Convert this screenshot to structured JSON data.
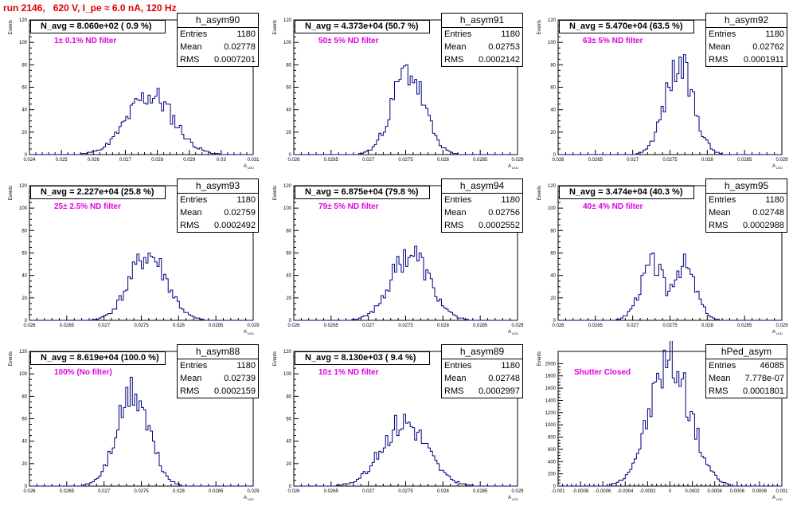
{
  "run_title": "run 2146,   620 V, I_pe ≈ 6.0 nA, 120 Hz",
  "stat_labels": {
    "entries": "Entries",
    "mean": "Mean",
    "rms": "RMS"
  },
  "y_axis_label": "Events",
  "x_axis_label": "A",
  "x_axis_label_sub": "LED",
  "chart_data": [
    {
      "type": "bar",
      "name": "h_asym90",
      "n_avg": "N_avg = 8.060e+02 ( 0.9 %)",
      "filter": "1± 0.1% ND filter",
      "entries": "1180",
      "mean": "0.02778",
      "rms": "0.0007201",
      "xlim": [
        0.024,
        0.031
      ],
      "ylim": [
        0,
        120
      ],
      "xticks": [
        0.024,
        0.025,
        0.026,
        0.027,
        0.028,
        0.029,
        0.03,
        0.031
      ],
      "xtick_labels": [
        "0.024",
        "0.025",
        "0.026",
        "0.027",
        "0.028",
        "0.029",
        "0.03",
        "0.031"
      ],
      "yticks": [
        0,
        20,
        40,
        60,
        80,
        100,
        120
      ],
      "dist": {
        "mu": 0.02778,
        "sigma": 0.00072,
        "peak": 53,
        "seed": 11
      }
    },
    {
      "type": "bar",
      "name": "h_asym91",
      "n_avg": "N_avg = 4.373e+04 (50.7 %)",
      "filter": "50± 5% ND filter",
      "entries": "1180",
      "mean": "0.02753",
      "rms": "0.0002142",
      "xlim": [
        0.026,
        0.029
      ],
      "ylim": [
        0,
        120
      ],
      "xticks": [
        0.026,
        0.0265,
        0.027,
        0.0275,
        0.028,
        0.0285,
        0.029
      ],
      "xtick_labels": [
        "0.026",
        "0.0265",
        "0.027",
        "0.0275",
        "0.028",
        "0.0285",
        "0.029"
      ],
      "yticks": [
        0,
        20,
        40,
        60,
        80,
        100,
        120
      ],
      "dist": {
        "mu": 0.02753,
        "sigma": 0.000214,
        "peak": 74,
        "seed": 23
      }
    },
    {
      "type": "bar",
      "name": "h_asym92",
      "n_avg": "N_avg = 5.470e+04 (63.5 %)",
      "filter": "63± 5% ND filter",
      "entries": "1180",
      "mean": "0.02762",
      "rms": "0.0001911",
      "xlim": [
        0.026,
        0.029
      ],
      "ylim": [
        0,
        120
      ],
      "xticks": [
        0.026,
        0.0265,
        0.027,
        0.0275,
        0.028,
        0.0285,
        0.029
      ],
      "xtick_labels": [
        "0.026",
        "0.0265",
        "0.027",
        "0.0275",
        "0.028",
        "0.0285",
        "0.029"
      ],
      "yticks": [
        0,
        20,
        40,
        60,
        80,
        100,
        120
      ],
      "dist": {
        "mu": 0.02762,
        "sigma": 0.000191,
        "peak": 79,
        "seed": 37
      }
    },
    {
      "type": "bar",
      "name": "h_asym93",
      "n_avg": "N_avg = 2.227e+04 (25.8 %)",
      "filter": "25± 2.5% ND filter",
      "entries": "1180",
      "mean": "0.02759",
      "rms": "0.0002492",
      "xlim": [
        0.026,
        0.029
      ],
      "ylim": [
        0,
        120
      ],
      "xticks": [
        0.026,
        0.0265,
        0.027,
        0.0275,
        0.028,
        0.0285,
        0.029
      ],
      "xtick_labels": [
        "0.026",
        "0.0265",
        "0.027",
        "0.0275",
        "0.028",
        "0.0285",
        "0.029"
      ],
      "yticks": [
        0,
        20,
        40,
        60,
        80,
        100,
        120
      ],
      "dist": {
        "mu": 0.02759,
        "sigma": 0.000249,
        "peak": 58,
        "seed": 41
      }
    },
    {
      "type": "bar",
      "name": "h_asym94",
      "n_avg": "N_avg = 6.875e+04 (79.8 %)",
      "filter": "79± 5% ND filter",
      "entries": "1180",
      "mean": "0.02756",
      "rms": "0.0002552",
      "xlim": [
        0.026,
        0.029
      ],
      "ylim": [
        0,
        120
      ],
      "xticks": [
        0.026,
        0.0265,
        0.027,
        0.0275,
        0.028,
        0.0285,
        0.029
      ],
      "xtick_labels": [
        "0.026",
        "0.0265",
        "0.027",
        "0.0275",
        "0.028",
        "0.0285",
        "0.029"
      ],
      "yticks": [
        0,
        20,
        40,
        60,
        80,
        100,
        120
      ],
      "dist": {
        "mu": 0.02756,
        "sigma": 0.000255,
        "peak": 60,
        "seed": 53
      }
    },
    {
      "type": "bar",
      "name": "h_asym95",
      "n_avg": "N_avg = 3.474e+04 (40.3 %)",
      "filter": "40± 4% ND filter",
      "entries": "1180",
      "mean": "0.02748",
      "rms": "0.0002988",
      "xlim": [
        0.026,
        0.029
      ],
      "ylim": [
        0,
        120
      ],
      "xticks": [
        0.026,
        0.0265,
        0.027,
        0.0275,
        0.028,
        0.0285,
        0.029
      ],
      "xtick_labels": [
        "0.026",
        "0.0265",
        "0.027",
        "0.0275",
        "0.028",
        "0.0285",
        "0.029"
      ],
      "yticks": [
        0,
        20,
        40,
        60,
        80,
        100,
        120
      ],
      "dist": {
        "mu": 0.02748,
        "sigma": 0.000299,
        "peak": 50,
        "seed": 67,
        "bimodal": true
      }
    },
    {
      "type": "bar",
      "name": "h_asym88",
      "n_avg": "N_avg = 8.619e+04 (100.0 %)",
      "filter": "100% (No filter)",
      "entries": "1180",
      "mean": "0.02739",
      "rms": "0.0002159",
      "xlim": [
        0.026,
        0.029
      ],
      "ylim": [
        0,
        120
      ],
      "xticks": [
        0.026,
        0.0265,
        0.027,
        0.0275,
        0.028,
        0.0285,
        0.029
      ],
      "xtick_labels": [
        "0.026",
        "0.0265",
        "0.027",
        "0.0275",
        "0.028",
        "0.0285",
        "0.029"
      ],
      "yticks": [
        0,
        20,
        40,
        60,
        80,
        100,
        120
      ],
      "dist": {
        "mu": 0.02739,
        "sigma": 0.000216,
        "peak": 82,
        "seed": 71
      }
    },
    {
      "type": "bar",
      "name": "h_asym89",
      "n_avg": "N_avg = 8.130e+03 ( 9.4 %)",
      "filter": "10± 1% ND filter",
      "entries": "1180",
      "mean": "0.02748",
      "rms": "0.0002997",
      "xlim": [
        0.026,
        0.029
      ],
      "ylim": [
        0,
        120
      ],
      "xticks": [
        0.026,
        0.0265,
        0.027,
        0.0275,
        0.028,
        0.0285,
        0.029
      ],
      "xtick_labels": [
        "0.026",
        "0.0265",
        "0.027",
        "0.0275",
        "0.028",
        "0.0285",
        "0.029"
      ],
      "yticks": [
        0,
        20,
        40,
        60,
        80,
        100,
        120
      ],
      "dist": {
        "mu": 0.02748,
        "sigma": 0.0003,
        "peak": 57,
        "seed": 83
      }
    },
    {
      "type": "bar",
      "name": "hPed_asym",
      "n_avg": "",
      "filter": "Shutter Closed",
      "entries": "46085",
      "mean": "7.778e-07",
      "rms": "0.0001801",
      "xlim": [
        -0.001,
        0.001
      ],
      "ylim": [
        0,
        2200
      ],
      "xticks": [
        -0.001,
        -0.0008,
        -0.0006,
        -0.0004,
        -0.0002,
        0,
        0.0002,
        0.0004,
        0.0006,
        0.0008,
        0.001
      ],
      "xtick_labels": [
        "-0.001",
        "-0.0008",
        "-0.0006",
        "-0.0004",
        "-0.0002",
        "0",
        "0.0002",
        "0.0004",
        "0.0006",
        "0.0008",
        "0.001"
      ],
      "yticks": [
        0,
        200,
        400,
        600,
        800,
        1000,
        1200,
        1400,
        1600,
        1800,
        2000
      ],
      "dist": {
        "mu": 0.0,
        "sigma": 0.00018,
        "peak": 2040,
        "seed": 97
      }
    }
  ]
}
